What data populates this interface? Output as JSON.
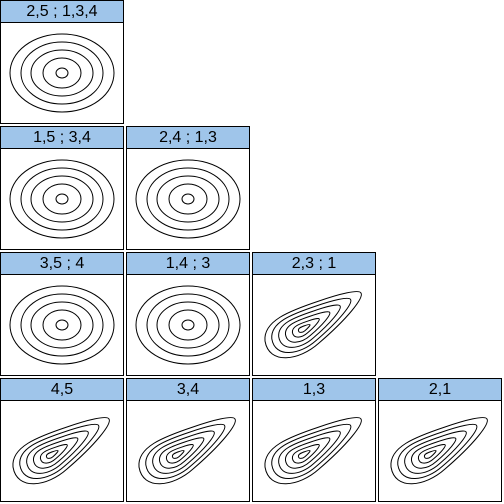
{
  "panels": [
    {
      "label": "2,5 ; 1,3,4",
      "shape": "circles"
    },
    {
      "label": "1,5 ; 3,4",
      "shape": "circles"
    },
    {
      "label": "2,4 ; 1,3",
      "shape": "circles"
    },
    {
      "label": "3,5 ; 4",
      "shape": "circles"
    },
    {
      "label": "1,4 ; 3",
      "shape": "circles"
    },
    {
      "label": "2,3 ; 1",
      "shape": "teardrop"
    },
    {
      "label": "4,5",
      "shape": "teardrop"
    },
    {
      "label": "3,4",
      "shape": "teardrop"
    },
    {
      "label": "1,3",
      "shape": "teardrop"
    },
    {
      "label": "2,1",
      "shape": "teardrop"
    }
  ]
}
